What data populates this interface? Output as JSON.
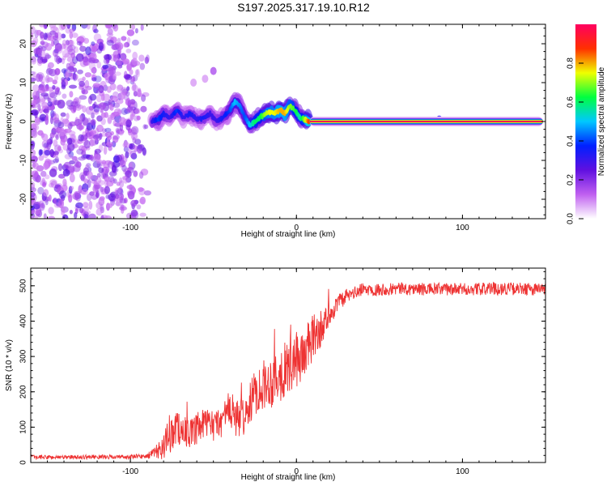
{
  "title": "S197.2025.317.19.10.R12",
  "colors": {
    "snr_line": "#ee3333",
    "spectral_axis_color": "#000000"
  },
  "colormap_stops": [
    "#ffffff",
    "#c060f0",
    "#6010e0",
    "#0020ff",
    "#00c8ff",
    "#00ff40",
    "#f0ff00",
    "#ff3000",
    "#ff0060"
  ],
  "chart_data": [
    {
      "type": "heatmap",
      "name": "spectrogram",
      "xlabel": "Height of straight line (km)",
      "ylabel": "Frequency (Hz)",
      "xlim": [
        -160,
        150
      ],
      "ylim": [
        -25,
        25
      ],
      "xticks": [
        -100,
        0,
        100
      ],
      "xtick_labels": [
        "-100",
        "0",
        "100"
      ],
      "yticks": [
        -20,
        -10,
        0,
        10,
        20
      ],
      "ytick_labels": [
        "-20",
        "-10",
        "0",
        "10",
        "20"
      ],
      "colorbar": {
        "label": "Normalized spectral amplitude",
        "range": [
          0,
          1
        ],
        "ticks": [
          0,
          0.2,
          0.4,
          0.6,
          0.8
        ],
        "tick_labels": [
          "0.0",
          "0.2",
          "0.4",
          "0.6",
          "0.8"
        ]
      },
      "noise_region_km": [
        -160,
        -88
      ],
      "ridge": {
        "x": [
          -87,
          -83,
          -80,
          -76,
          -72,
          -68,
          -64,
          -60,
          -56,
          -52,
          -48,
          -44,
          -40,
          -37,
          -34,
          -31,
          -28,
          -25,
          -22,
          -19,
          -16,
          -13,
          -10,
          -7,
          -4,
          -1,
          2,
          5,
          8
        ],
        "freq": [
          0,
          0.5,
          2,
          1,
          3,
          1,
          2,
          0.5,
          1,
          2,
          0,
          1,
          3,
          5,
          4,
          1,
          -1,
          0,
          1,
          2,
          2.5,
          2,
          3,
          2,
          4,
          3,
          1,
          0.5,
          0
        ],
        "amplitude": [
          0.3,
          0.4,
          0.35,
          0.3,
          0.4,
          0.3,
          0.35,
          0.3,
          0.35,
          0.3,
          0.3,
          0.35,
          0.4,
          0.5,
          0.45,
          0.4,
          0.5,
          0.6,
          0.6,
          0.7,
          0.75,
          0.75,
          0.8,
          0.8,
          0.7,
          0.65,
          0.55,
          0.7,
          0.9
        ]
      },
      "carrier": {
        "x_start": 8,
        "x_end": 150,
        "freq": 0,
        "amplitude": 0.98
      },
      "outlier_blobs": [
        {
          "x": -50,
          "freq": 13,
          "amplitude": 0.15
        },
        {
          "x": -62,
          "freq": 10,
          "amplitude": 0.08
        },
        {
          "x": -55,
          "freq": 11,
          "amplitude": 0.08
        },
        {
          "x": 86,
          "freq": 0.5,
          "amplitude": 0.3
        }
      ]
    },
    {
      "type": "line",
      "name": "snr",
      "xlabel": "Height of straight line (km)",
      "ylabel": "SNR (10 * v/v)",
      "xlim": [
        -160,
        150
      ],
      "ylim": [
        0,
        550
      ],
      "xticks": [
        -100,
        0,
        100
      ],
      "xtick_labels": [
        "-100",
        "0",
        "100"
      ],
      "yticks": [
        0,
        100,
        200,
        300,
        400,
        500
      ],
      "ytick_labels": [
        "0",
        "100",
        "200",
        "300",
        "400",
        "500"
      ],
      "series": [
        {
          "name": "SNR",
          "x": [
            -160,
            -140,
            -120,
            -100,
            -90,
            -85,
            -80,
            -76,
            -72,
            -68,
            -64,
            -60,
            -55,
            -50,
            -45,
            -40,
            -35,
            -30,
            -25,
            -20,
            -15,
            -10,
            -5,
            0,
            5,
            10,
            15,
            20,
            25,
            30,
            35,
            40,
            50,
            60,
            80,
            100,
            120,
            150
          ],
          "y": [
            15,
            15,
            16,
            16,
            18,
            30,
            45,
            80,
            100,
            90,
            80,
            90,
            110,
            100,
            120,
            150,
            120,
            140,
            200,
            220,
            230,
            250,
            270,
            290,
            310,
            350,
            380,
            420,
            450,
            470,
            480,
            490,
            490,
            492,
            490,
            490,
            492,
            490
          ],
          "noise": [
            6,
            6,
            6,
            6,
            8,
            15,
            40,
            55,
            50,
            45,
            40,
            45,
            45,
            40,
            50,
            60,
            55,
            55,
            65,
            70,
            75,
            80,
            80,
            80,
            75,
            70,
            50,
            35,
            25,
            20,
            18,
            18,
            18,
            18,
            18,
            18,
            18,
            18
          ]
        }
      ]
    }
  ]
}
